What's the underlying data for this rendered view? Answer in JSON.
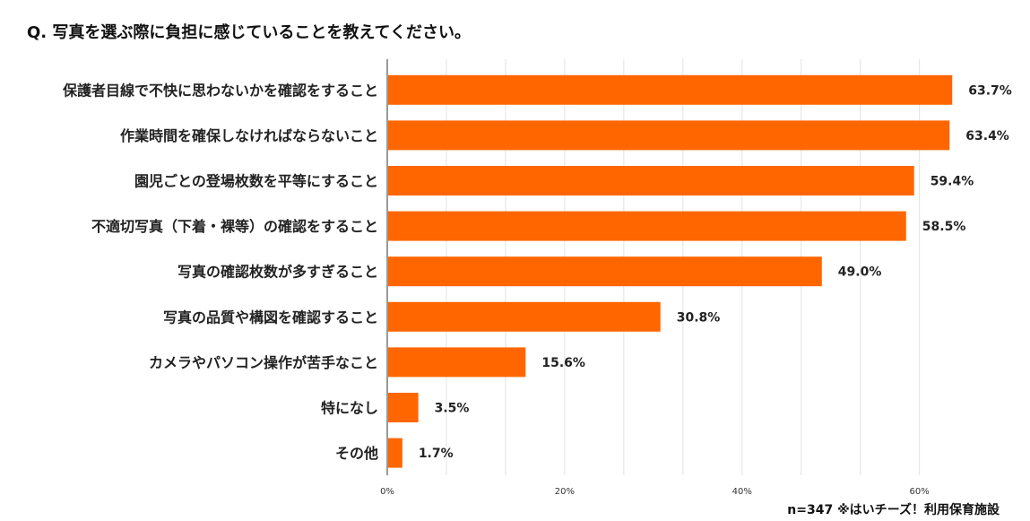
{
  "chart_data": {
    "type": "bar",
    "orientation": "horizontal",
    "title": "Q. 写真を選ぶ際に負担に感じていることを教えてください。",
    "categories": [
      "保護者目線で不快に思わないかを確認をすること",
      "作業時間を確保しなければならないこと",
      "園児ごとの登場枚数を平等にすること",
      "不適切写真（下着・裸等）の確認をすること",
      "写真の確認枚数が多すぎること",
      "写真の品質や構図を確認すること",
      "カメラやパソコン操作が苦手なこと",
      "特になし",
      "その他"
    ],
    "values": [
      63.7,
      63.4,
      59.4,
      58.5,
      49.0,
      30.8,
      15.6,
      3.5,
      1.7
    ],
    "value_labels": [
      "63.7%",
      "63.4%",
      "59.4%",
      "58.5%",
      "49.0%",
      "30.8%",
      "15.6%",
      "3.5%",
      "1.7%"
    ],
    "xlim": [
      0,
      66
    ],
    "x_ticks": [
      0,
      20,
      40,
      60
    ],
    "x_tick_labels": [
      "0%",
      "20%",
      "40%",
      "60%"
    ],
    "minor_grid_step": 6.667,
    "bar_color": "#ff6600",
    "grid": true,
    "note": "n=347  ※はいチーズ！利用保育施設"
  }
}
